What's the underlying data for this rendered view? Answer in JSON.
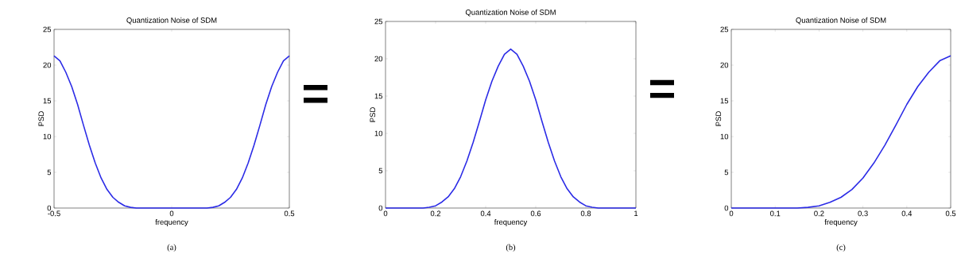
{
  "chart_data": [
    {
      "type": "line",
      "title": "Quantization Noise of SDM",
      "xlabel": "frequency",
      "ylabel": "PSD",
      "color": "#2b2be6",
      "x": [
        -0.5,
        -0.475,
        -0.45,
        -0.425,
        -0.4,
        -0.375,
        -0.35,
        -0.325,
        -0.3,
        -0.275,
        -0.25,
        -0.225,
        -0.2,
        -0.175,
        -0.15,
        -0.1,
        0,
        0.1,
        0.15,
        0.175,
        0.2,
        0.225,
        0.25,
        0.275,
        0.3,
        0.325,
        0.35,
        0.375,
        0.4,
        0.425,
        0.45,
        0.475,
        0.5
      ],
      "values": [
        21.3,
        20.6,
        19,
        17,
        14.5,
        11.6,
        8.8,
        6.3,
        4.2,
        2.6,
        1.5,
        0.8,
        0.3,
        0.1,
        0,
        0,
        0,
        0,
        0,
        0.1,
        0.3,
        0.8,
        1.5,
        2.6,
        4.2,
        6.3,
        8.8,
        11.6,
        14.5,
        17,
        19,
        20.6,
        21.3
      ],
      "xlim": [
        -0.5,
        0.5
      ],
      "xticks": [
        -0.5,
        0,
        0.5
      ],
      "ylim": [
        0,
        25
      ],
      "yticks": [
        0,
        5,
        10,
        15,
        20,
        25
      ],
      "grid": false,
      "annotations": [
        "(a)",
        "="
      ]
    },
    {
      "type": "line",
      "title": "Quantization Noise of SDM",
      "xlabel": "frequency",
      "ylabel": "PSD",
      "color": "#2b2be6",
      "x": [
        0,
        0.1,
        0.15,
        0.175,
        0.2,
        0.225,
        0.25,
        0.275,
        0.3,
        0.325,
        0.35,
        0.375,
        0.4,
        0.425,
        0.45,
        0.475,
        0.5,
        0.525,
        0.55,
        0.575,
        0.6,
        0.625,
        0.65,
        0.675,
        0.7,
        0.725,
        0.75,
        0.775,
        0.8,
        0.825,
        0.85,
        0.9,
        1
      ],
      "values": [
        0,
        0,
        0,
        0.1,
        0.3,
        0.8,
        1.5,
        2.6,
        4.2,
        6.3,
        8.8,
        11.6,
        14.5,
        17,
        19,
        20.6,
        21.3,
        20.6,
        19,
        17,
        14.5,
        11.6,
        8.8,
        6.3,
        4.2,
        2.6,
        1.5,
        0.8,
        0.3,
        0.1,
        0,
        0,
        0
      ],
      "xlim": [
        0,
        1
      ],
      "xticks": [
        0,
        0.2,
        0.4,
        0.6,
        0.8,
        1
      ],
      "ylim": [
        0,
        25
      ],
      "yticks": [
        0,
        5,
        10,
        15,
        20,
        25
      ],
      "grid": false,
      "annotations": [
        "(b)",
        "="
      ]
    },
    {
      "type": "line",
      "title": "Quantization Noise of SDM",
      "xlabel": "frequency",
      "ylabel": "PSD",
      "color": "#2b2be6",
      "x": [
        0,
        0.1,
        0.15,
        0.175,
        0.2,
        0.225,
        0.25,
        0.275,
        0.3,
        0.325,
        0.35,
        0.375,
        0.4,
        0.425,
        0.45,
        0.475,
        0.5
      ],
      "values": [
        0,
        0,
        0,
        0.1,
        0.3,
        0.8,
        1.5,
        2.6,
        4.2,
        6.3,
        8.8,
        11.6,
        14.5,
        17,
        19,
        20.6,
        21.3
      ],
      "xlim": [
        0,
        0.5
      ],
      "xticks": [
        0,
        0.1,
        0.2,
        0.3,
        0.4,
        0.5
      ],
      "ylim": [
        0,
        25
      ],
      "yticks": [
        0,
        5,
        10,
        15,
        20,
        25
      ],
      "grid": false,
      "annotations": [
        "(c)"
      ]
    }
  ]
}
